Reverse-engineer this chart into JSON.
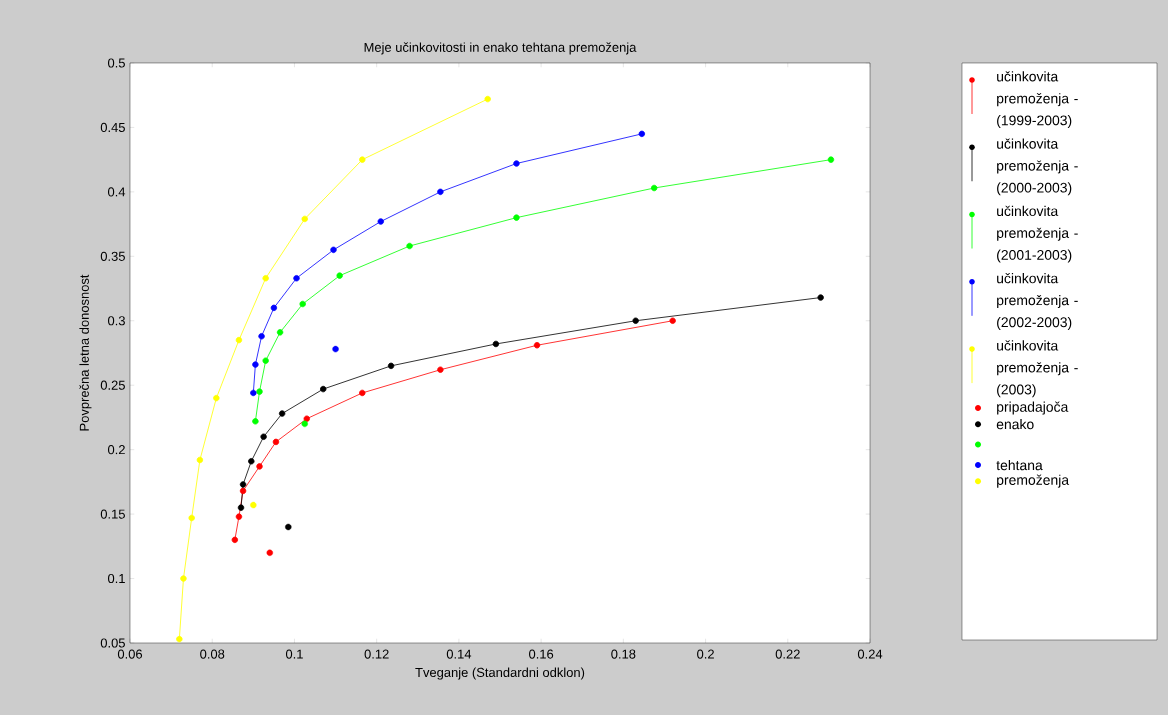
{
  "chart_data": {
    "type": "line",
    "title": "Meje učinkovitosti in enako tehtana premoženja",
    "xlabel": "Tveganje (Standardni odklon)",
    "ylabel": "Povprečna letna donosnost",
    "xlim": [
      0.06,
      0.24
    ],
    "xticks": [
      0.06,
      0.08,
      0.1,
      0.12,
      0.14,
      0.16,
      0.18,
      0.2,
      0.22,
      0.24
    ],
    "ylim": [
      0.05,
      0.5
    ],
    "yticks": [
      0.05,
      0.1,
      0.15,
      0.2,
      0.25,
      0.3,
      0.35,
      0.4,
      0.45,
      0.5
    ],
    "marker": "circle",
    "line_style": "solid",
    "legend": "right",
    "series": [
      {
        "name": "učinkovita premoženja - (1999-2003)",
        "color": "#ff0000",
        "x": [
          0.0855,
          0.0865,
          0.0875,
          0.0915,
          0.0955,
          0.103,
          0.1165,
          0.1355,
          0.159,
          0.192
        ],
        "values": [
          0.13,
          0.148,
          0.168,
          0.187,
          0.206,
          0.224,
          0.244,
          0.262,
          0.281,
          0.3
        ]
      },
      {
        "name": "učinkovita premoženja - (2000-2003)",
        "color": "#000000",
        "x": [
          0.087,
          0.0875,
          0.0895,
          0.0925,
          0.097,
          0.107,
          0.1235,
          0.149,
          0.183,
          0.228
        ],
        "values": [
          0.155,
          0.173,
          0.191,
          0.21,
          0.228,
          0.247,
          0.265,
          0.282,
          0.3,
          0.318
        ]
      },
      {
        "name": "učinkovita premoženja - (2001-2003)",
        "color": "#00ff00",
        "x": [
          0.0905,
          0.0915,
          0.093,
          0.0965,
          0.102,
          0.111,
          0.128,
          0.154,
          0.1875,
          0.2305
        ],
        "values": [
          0.222,
          0.245,
          0.269,
          0.291,
          0.313,
          0.335,
          0.358,
          0.38,
          0.403,
          0.425
        ]
      },
      {
        "name": "učinkovita premoženja - (2002-2003)",
        "color": "#0000ff",
        "x": [
          0.09,
          0.0905,
          0.092,
          0.095,
          0.1005,
          0.1095,
          0.121,
          0.1355,
          0.154,
          0.1845
        ],
        "values": [
          0.244,
          0.266,
          0.288,
          0.31,
          0.333,
          0.355,
          0.377,
          0.4,
          0.422,
          0.445
        ]
      },
      {
        "name": "učinkovita premoženja - (2003)",
        "color": "#ffff00",
        "x": [
          0.072,
          0.073,
          0.075,
          0.077,
          0.081,
          0.0865,
          0.093,
          0.1025,
          0.1165,
          0.147
        ],
        "values": [
          0.053,
          0.1,
          0.147,
          0.192,
          0.24,
          0.285,
          0.333,
          0.379,
          0.425,
          0.472
        ]
      },
      {
        "type": "scatter",
        "name": "pripadajoča",
        "color": "#ff0000",
        "x": [
          0.094
        ],
        "values": [
          0.12
        ]
      },
      {
        "type": "scatter",
        "name": "enako",
        "color": "#000000",
        "x": [
          0.0985
        ],
        "values": [
          0.14
        ]
      },
      {
        "type": "scatter",
        "color": "#00ff00",
        "x": [
          0.1025
        ],
        "values": [
          0.22
        ]
      },
      {
        "type": "scatter",
        "name": "tehtana",
        "color": "#0000ff",
        "x": [
          0.11
        ],
        "values": [
          0.278
        ]
      },
      {
        "type": "scatter",
        "name": "premoženja",
        "color": "#ffff00",
        "x": [
          0.09
        ],
        "values": [
          0.157
        ]
      }
    ]
  }
}
